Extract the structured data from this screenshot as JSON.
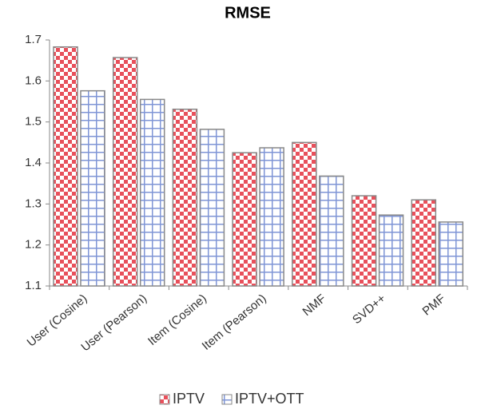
{
  "chart_data": {
    "type": "bar",
    "title": "RMSE",
    "categories": [
      "User (Cosine)",
      "User (Pearson)",
      "Item (Cosine)",
      "Item (Pearson)",
      "NMF",
      "SVD++",
      "PMF"
    ],
    "series": [
      {
        "name": "IPTV",
        "color": "#e8505b",
        "values": [
          1.683,
          1.657,
          1.531,
          1.425,
          1.45,
          1.32,
          1.31
        ]
      },
      {
        "name": "IPTV+OTT",
        "color": "#7f95d6",
        "values": [
          1.576,
          1.555,
          1.482,
          1.437,
          1.368,
          1.273,
          1.256
        ]
      }
    ],
    "ylim": [
      1.1,
      1.7
    ],
    "yticks": [
      1.1,
      1.2,
      1.3,
      1.4,
      1.5,
      1.6,
      1.7
    ],
    "legend": "bottom"
  }
}
